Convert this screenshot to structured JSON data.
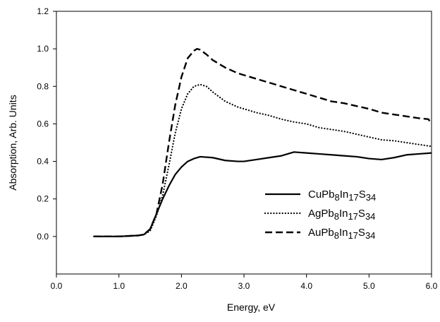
{
  "chart_data": {
    "type": "line",
    "xlabel": "Energy, eV",
    "ylabel": "Absorption, Arb. Units",
    "xlim": [
      0.0,
      6.0
    ],
    "ylim": [
      -0.2,
      1.2
    ],
    "xticks": [
      0.0,
      1.0,
      2.0,
      3.0,
      4.0,
      5.0,
      6.0
    ],
    "xtick_labels": [
      "0.0",
      "1.0",
      "2.0",
      "3.0",
      "4.0",
      "5.0",
      "6.0"
    ],
    "yticks": [
      0.0,
      0.2,
      0.4,
      0.6,
      0.8,
      1.0,
      1.2
    ],
    "ytick_labels": [
      "0.0",
      "0.2",
      "0.4",
      "0.6",
      "0.8",
      "1.0",
      "1.2"
    ],
    "grid": false,
    "legend_position": "lower-right",
    "series": [
      {
        "name": "CuPb8In17S34",
        "legend_parts": [
          {
            "text": "CuPb",
            "sub": false
          },
          {
            "text": "8",
            "sub": true
          },
          {
            "text": "In",
            "sub": false
          },
          {
            "text": "17",
            "sub": true
          },
          {
            "text": "S",
            "sub": false
          },
          {
            "text": "34",
            "sub": true
          }
        ],
        "line_style": "solid",
        "x": [
          0.6,
          1.0,
          1.3,
          1.4,
          1.5,
          1.6,
          1.7,
          1.8,
          1.9,
          2.0,
          2.1,
          2.2,
          2.3,
          2.5,
          2.7,
          2.9,
          3.0,
          3.2,
          3.4,
          3.6,
          3.8,
          4.0,
          4.2,
          4.4,
          4.6,
          4.8,
          5.0,
          5.2,
          5.4,
          5.6,
          5.8,
          6.0
        ],
        "y": [
          0.0,
          0.0,
          0.005,
          0.01,
          0.04,
          0.12,
          0.2,
          0.27,
          0.33,
          0.37,
          0.4,
          0.415,
          0.425,
          0.42,
          0.405,
          0.4,
          0.4,
          0.41,
          0.42,
          0.43,
          0.45,
          0.445,
          0.44,
          0.435,
          0.43,
          0.425,
          0.415,
          0.41,
          0.42,
          0.435,
          0.44,
          0.445
        ]
      },
      {
        "name": "AgPb8In17S34",
        "legend_parts": [
          {
            "text": "AgPb",
            "sub": false
          },
          {
            "text": "8",
            "sub": true
          },
          {
            "text": "In",
            "sub": false
          },
          {
            "text": "17",
            "sub": true
          },
          {
            "text": "S",
            "sub": false
          },
          {
            "text": "34",
            "sub": true
          }
        ],
        "line_style": "dotted",
        "x": [
          0.6,
          1.0,
          1.3,
          1.4,
          1.5,
          1.6,
          1.7,
          1.8,
          1.9,
          2.0,
          2.1,
          2.2,
          2.3,
          2.4,
          2.5,
          2.7,
          2.9,
          3.0,
          3.2,
          3.4,
          3.6,
          3.8,
          4.0,
          4.2,
          4.4,
          4.6,
          4.8,
          5.0,
          5.2,
          5.4,
          5.6,
          5.8,
          6.0
        ],
        "y": [
          0.0,
          0.0,
          0.005,
          0.01,
          0.03,
          0.11,
          0.22,
          0.38,
          0.55,
          0.68,
          0.76,
          0.8,
          0.81,
          0.8,
          0.77,
          0.72,
          0.69,
          0.68,
          0.66,
          0.645,
          0.625,
          0.61,
          0.6,
          0.58,
          0.57,
          0.56,
          0.545,
          0.53,
          0.515,
          0.51,
          0.5,
          0.49,
          0.48
        ]
      },
      {
        "name": "AuPb8In17S34",
        "legend_parts": [
          {
            "text": "AuPb",
            "sub": false
          },
          {
            "text": "8",
            "sub": true
          },
          {
            "text": "In",
            "sub": false
          },
          {
            "text": "17",
            "sub": true
          },
          {
            "text": "S",
            "sub": false
          },
          {
            "text": "34",
            "sub": true
          }
        ],
        "line_style": "dashed",
        "x": [
          0.6,
          1.0,
          1.3,
          1.4,
          1.5,
          1.6,
          1.7,
          1.8,
          1.9,
          2.0,
          2.1,
          2.2,
          2.25,
          2.3,
          2.4,
          2.5,
          2.7,
          2.9,
          3.0,
          3.2,
          3.4,
          3.6,
          3.8,
          4.0,
          4.2,
          4.4,
          4.6,
          4.8,
          5.0,
          5.2,
          5.4,
          5.6,
          5.8,
          5.95,
          6.0
        ],
        "y": [
          0.0,
          0.0,
          0.005,
          0.01,
          0.04,
          0.12,
          0.28,
          0.5,
          0.7,
          0.85,
          0.95,
          0.99,
          1.0,
          0.995,
          0.97,
          0.94,
          0.9,
          0.87,
          0.86,
          0.84,
          0.82,
          0.8,
          0.78,
          0.76,
          0.74,
          0.72,
          0.71,
          0.695,
          0.68,
          0.66,
          0.65,
          0.64,
          0.63,
          0.625,
          0.6
        ]
      }
    ]
  }
}
